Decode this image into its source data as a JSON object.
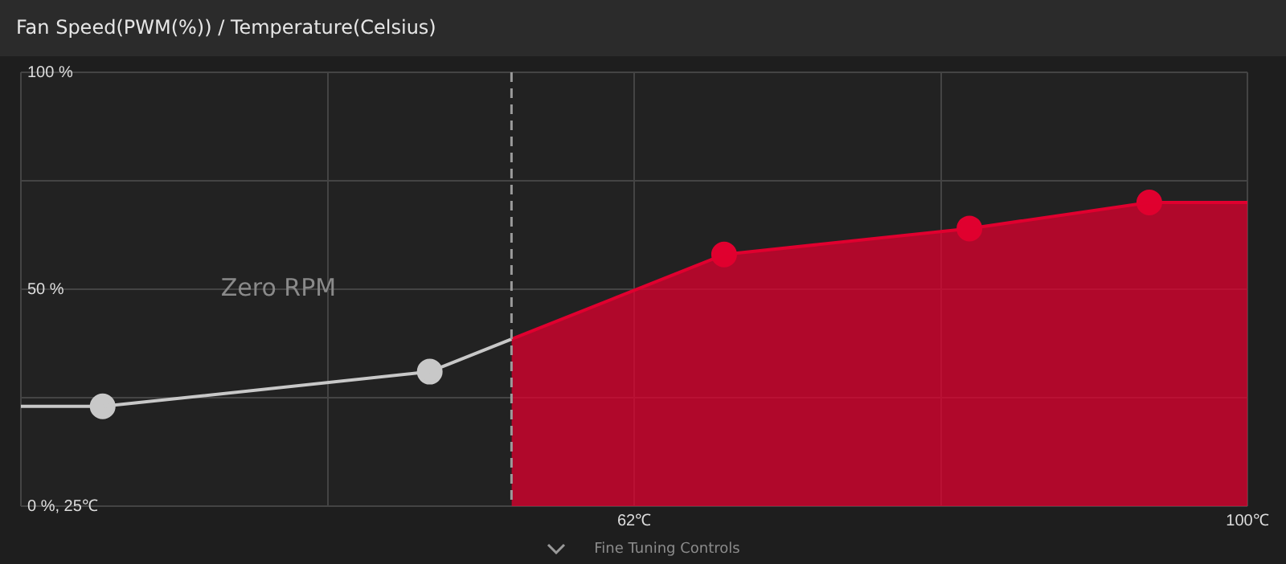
{
  "chart_data": {
    "type": "line",
    "title": "Fan Speed(PWM(%)) / Temperature(Celsius)",
    "xlim": [
      25,
      100
    ],
    "xticks": [
      {
        "value": 25,
        "label": null
      },
      {
        "value": 43.75,
        "label": null
      },
      {
        "value": 62.5,
        "label": "62℃"
      },
      {
        "value": 81.25,
        "label": null
      },
      {
        "value": 100,
        "label": "100℃"
      }
    ],
    "ylim": [
      0,
      100
    ],
    "yticks": [
      {
        "value": 0,
        "label": "0 %, 25℃"
      },
      {
        "value": 25,
        "label": null
      },
      {
        "value": 50,
        "label": "50 %"
      },
      {
        "value": 75,
        "label": null
      },
      {
        "value": 100,
        "label": "100 %"
      }
    ],
    "grid": true,
    "series": [
      {
        "type": "line",
        "color": "#c8c8c8",
        "marker": "none",
        "x": [
          25,
          30,
          50,
          55
        ],
        "values": [
          23,
          23,
          31,
          38.5
        ]
      },
      {
        "type": "scatter",
        "color": "#c8c8c8",
        "marker": "circle",
        "x": [
          30,
          50
        ],
        "values": [
          23,
          31
        ]
      },
      {
        "type": "area",
        "color": "#e0002f",
        "marker": "none",
        "x": [
          55,
          68,
          83,
          94,
          100
        ],
        "values": [
          38.5,
          58,
          64,
          70,
          70
        ]
      },
      {
        "type": "scatter",
        "color": "#e0002f",
        "marker": "circle",
        "x": [
          68,
          83,
          94
        ],
        "values": [
          58,
          64,
          70
        ]
      }
    ],
    "ref_lines": [
      {
        "axis": "x",
        "value": 55,
        "color": "#9a9a9a",
        "line_style": "dashed"
      }
    ],
    "annotations": [
      "Zero RPM",
      "Fine Tuning Controls"
    ]
  }
}
